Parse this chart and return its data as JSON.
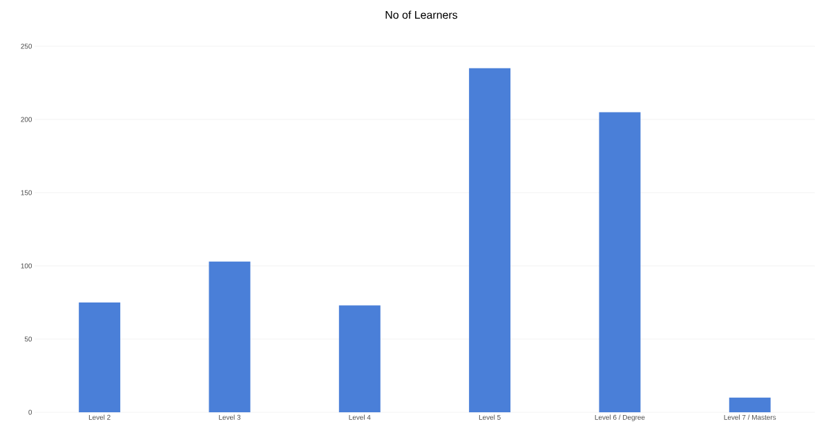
{
  "chart_data": {
    "type": "bar",
    "title": "No of Learners",
    "categories": [
      "Level 2",
      "Level 3",
      "Level 4",
      "Level 5",
      "Level 6 / Degree",
      "Level 7 / Masters"
    ],
    "values": [
      75,
      103,
      73,
      235,
      205,
      10
    ],
    "color": "#4a7fd8",
    "ylim": [
      0,
      250
    ],
    "yticks": [
      0,
      50,
      100,
      150,
      200,
      250
    ],
    "grid": "y"
  }
}
